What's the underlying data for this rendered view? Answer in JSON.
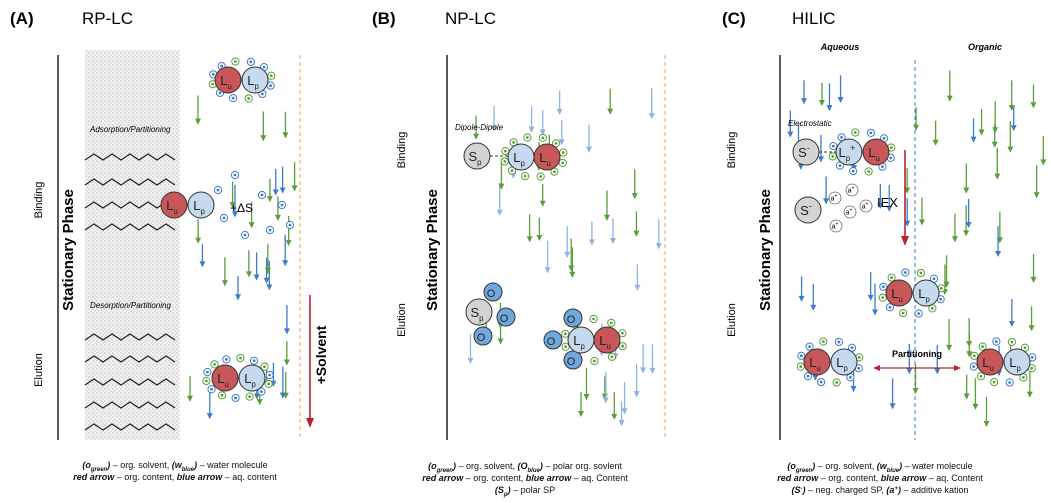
{
  "panels": [
    {
      "label": "(A)",
      "title": "RP-LC",
      "side_labels": [
        "Binding",
        "Elution"
      ],
      "stationary_phase": "Stationary Phase",
      "annotations": [
        "Adsorption/Partitioning",
        "Desorption/Partitioning",
        "+ΔS",
        "+Solvent"
      ],
      "symbols": {
        "L": "L",
        "u": "u",
        "p": "p"
      },
      "caption": [
        [
          "(o",
          "green",
          ")",
          " – org. solvent, ",
          "(w",
          "blue",
          ")",
          " – water molecule"
        ],
        [
          "red arrow",
          " – org. content, ",
          "blue arrow",
          " – aq. content"
        ]
      ]
    },
    {
      "label": "(B)",
      "title": "NP-LC",
      "side_labels": [
        "Binding",
        "Elution"
      ],
      "stationary_phase": "Stationary Phase",
      "annotations": [
        "Dipole-Dipole"
      ],
      "symbols": {
        "L": "L",
        "u": "u",
        "p": "p",
        "S": "S",
        "S_sub": "p",
        "O": "O"
      },
      "caption": [
        [
          "(o",
          "green",
          ")",
          " – org. solvent, ",
          "(O",
          "blue",
          ")",
          " – polar org. sovlent"
        ],
        [
          "red arrow",
          " – org. content, ",
          "blue arrow",
          " – aq. Content"
        ],
        [
          "(S",
          "p",
          ")",
          " – polar SP"
        ]
      ]
    },
    {
      "label": "(C)",
      "title": "HILIC",
      "side_labels": [
        "Binding",
        "Elution"
      ],
      "stationary_phase": "Stationary Phase",
      "annotations": [
        "Aqueous",
        "Organic",
        "Electrostatic",
        "IEX",
        "Partitioning"
      ],
      "symbols": {
        "L": "L",
        "u": "u",
        "p": "p",
        "plus": "+",
        "S": "S",
        "minus": "-",
        "a": "a"
      },
      "caption": [
        [
          "(o",
          "green",
          ")",
          " – org. solvent, ",
          "(w",
          "blue",
          ")",
          " – water molecule"
        ],
        [
          "red arrow",
          " – org. content, ",
          "blue arrow",
          " – aq. Content"
        ],
        [
          "(S",
          "-",
          ")",
          " – neg. charged SP, ",
          "(a",
          "+",
          ")",
          " – additive kation"
        ]
      ]
    }
  ]
}
